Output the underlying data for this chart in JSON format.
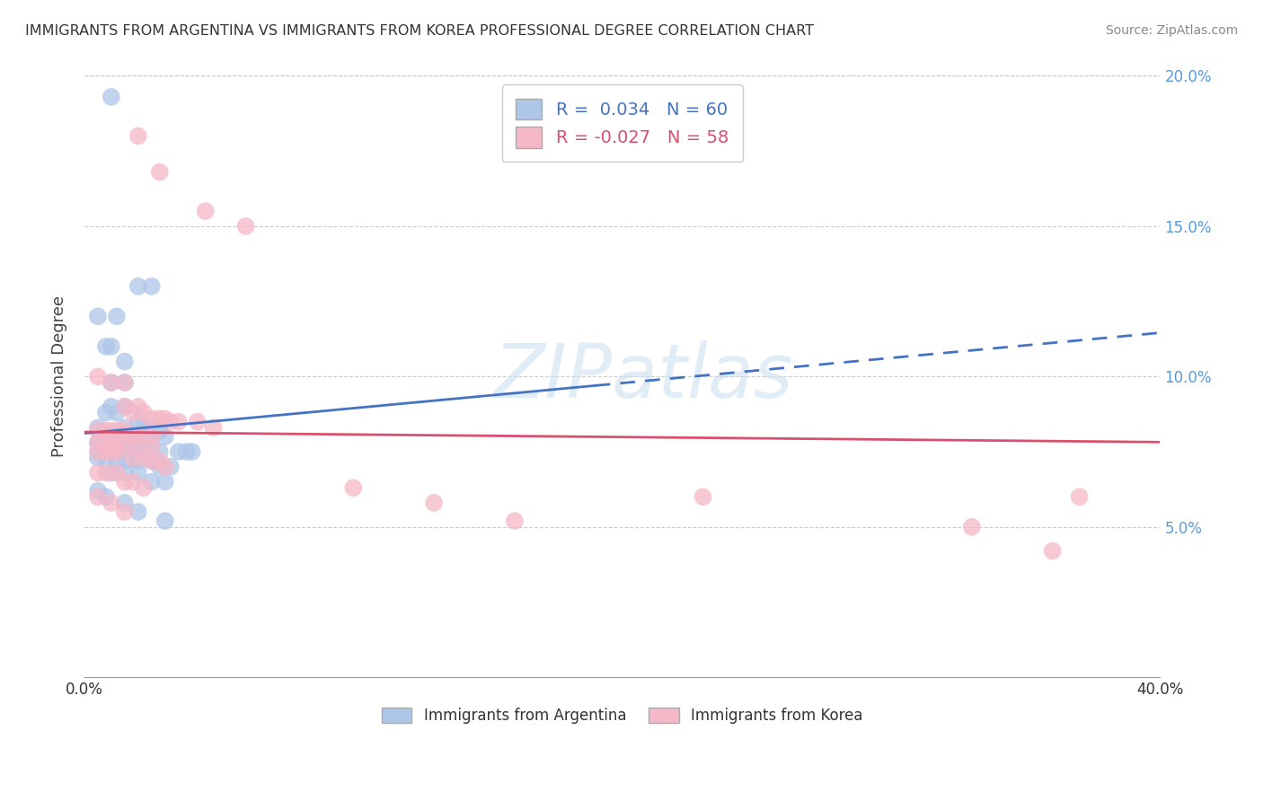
{
  "title": "IMMIGRANTS FROM ARGENTINA VS IMMIGRANTS FROM KOREA PROFESSIONAL DEGREE CORRELATION CHART",
  "source": "Source: ZipAtlas.com",
  "ylabel": "Professional Degree",
  "xlim": [
    0.0,
    0.4
  ],
  "ylim": [
    0.0,
    0.2
  ],
  "xtick_vals": [
    0.0,
    0.05,
    0.1,
    0.15,
    0.2,
    0.25,
    0.3,
    0.35,
    0.4
  ],
  "xtick_labels_show": {
    "0.0": "0.0%",
    "0.40": "40.0%"
  },
  "ytick_vals": [
    0.0,
    0.05,
    0.1,
    0.15,
    0.2
  ],
  "ytick_labels_right": [
    "",
    "5.0%",
    "10.0%",
    "15.0%",
    "20.0%"
  ],
  "argentina_R": 0.034,
  "argentina_N": 60,
  "korea_R": -0.027,
  "korea_N": 58,
  "argentina_color": "#aec6e8",
  "korea_color": "#f4b8c8",
  "argentina_line_color": "#4472c4",
  "korea_line_color": "#d94f6e",
  "background_color": "#ffffff",
  "legend_argentina": "Immigrants from Argentina",
  "legend_korea": "Immigrants from Korea",
  "argentina_scatter": [
    [
      0.01,
      0.193
    ],
    [
      0.005,
      0.12
    ],
    [
      0.012,
      0.12
    ],
    [
      0.008,
      0.11
    ],
    [
      0.01,
      0.11
    ],
    [
      0.015,
      0.105
    ],
    [
      0.02,
      0.13
    ],
    [
      0.025,
      0.13
    ],
    [
      0.01,
      0.098
    ],
    [
      0.015,
      0.098
    ],
    [
      0.015,
      0.09
    ],
    [
      0.01,
      0.09
    ],
    [
      0.012,
      0.088
    ],
    [
      0.008,
      0.088
    ],
    [
      0.005,
      0.083
    ],
    [
      0.015,
      0.083
    ],
    [
      0.02,
      0.085
    ],
    [
      0.022,
      0.083
    ],
    [
      0.025,
      0.083
    ],
    [
      0.018,
      0.08
    ],
    [
      0.02,
      0.08
    ],
    [
      0.025,
      0.08
    ],
    [
      0.028,
      0.082
    ],
    [
      0.03,
      0.08
    ],
    [
      0.005,
      0.078
    ],
    [
      0.008,
      0.078
    ],
    [
      0.01,
      0.078
    ],
    [
      0.012,
      0.078
    ],
    [
      0.015,
      0.077
    ],
    [
      0.018,
      0.077
    ],
    [
      0.02,
      0.077
    ],
    [
      0.022,
      0.077
    ],
    [
      0.005,
      0.075
    ],
    [
      0.008,
      0.075
    ],
    [
      0.01,
      0.075
    ],
    [
      0.012,
      0.075
    ],
    [
      0.018,
      0.075
    ],
    [
      0.022,
      0.075
    ],
    [
      0.028,
      0.075
    ],
    [
      0.035,
      0.075
    ],
    [
      0.038,
      0.075
    ],
    [
      0.04,
      0.075
    ],
    [
      0.005,
      0.073
    ],
    [
      0.008,
      0.072
    ],
    [
      0.012,
      0.072
    ],
    [
      0.015,
      0.072
    ],
    [
      0.02,
      0.072
    ],
    [
      0.025,
      0.072
    ],
    [
      0.028,
      0.07
    ],
    [
      0.032,
      0.07
    ],
    [
      0.01,
      0.068
    ],
    [
      0.015,
      0.068
    ],
    [
      0.02,
      0.068
    ],
    [
      0.025,
      0.065
    ],
    [
      0.03,
      0.065
    ],
    [
      0.005,
      0.062
    ],
    [
      0.008,
      0.06
    ],
    [
      0.015,
      0.058
    ],
    [
      0.02,
      0.055
    ],
    [
      0.03,
      0.052
    ]
  ],
  "korea_scatter": [
    [
      0.02,
      0.18
    ],
    [
      0.028,
      0.168
    ],
    [
      0.045,
      0.155
    ],
    [
      0.06,
      0.15
    ],
    [
      0.005,
      0.1
    ],
    [
      0.01,
      0.098
    ],
    [
      0.015,
      0.098
    ],
    [
      0.015,
      0.09
    ],
    [
      0.02,
      0.09
    ],
    [
      0.018,
      0.088
    ],
    [
      0.022,
      0.088
    ],
    [
      0.025,
      0.086
    ],
    [
      0.028,
      0.086
    ],
    [
      0.03,
      0.086
    ],
    [
      0.032,
      0.085
    ],
    [
      0.035,
      0.085
    ],
    [
      0.042,
      0.085
    ],
    [
      0.048,
      0.083
    ],
    [
      0.005,
      0.082
    ],
    [
      0.008,
      0.082
    ],
    [
      0.01,
      0.082
    ],
    [
      0.012,
      0.082
    ],
    [
      0.015,
      0.082
    ],
    [
      0.018,
      0.08
    ],
    [
      0.02,
      0.08
    ],
    [
      0.025,
      0.08
    ],
    [
      0.005,
      0.078
    ],
    [
      0.008,
      0.078
    ],
    [
      0.01,
      0.078
    ],
    [
      0.012,
      0.078
    ],
    [
      0.015,
      0.077
    ],
    [
      0.02,
      0.077
    ],
    [
      0.025,
      0.077
    ],
    [
      0.005,
      0.075
    ],
    [
      0.008,
      0.075
    ],
    [
      0.01,
      0.075
    ],
    [
      0.012,
      0.075
    ],
    [
      0.018,
      0.073
    ],
    [
      0.022,
      0.073
    ],
    [
      0.025,
      0.072
    ],
    [
      0.028,
      0.072
    ],
    [
      0.03,
      0.07
    ],
    [
      0.005,
      0.068
    ],
    [
      0.008,
      0.068
    ],
    [
      0.012,
      0.068
    ],
    [
      0.015,
      0.065
    ],
    [
      0.018,
      0.065
    ],
    [
      0.022,
      0.063
    ],
    [
      0.005,
      0.06
    ],
    [
      0.01,
      0.058
    ],
    [
      0.015,
      0.055
    ],
    [
      0.1,
      0.063
    ],
    [
      0.13,
      0.058
    ],
    [
      0.16,
      0.052
    ],
    [
      0.23,
      0.06
    ],
    [
      0.33,
      0.05
    ],
    [
      0.36,
      0.042
    ],
    [
      0.37,
      0.06
    ]
  ]
}
